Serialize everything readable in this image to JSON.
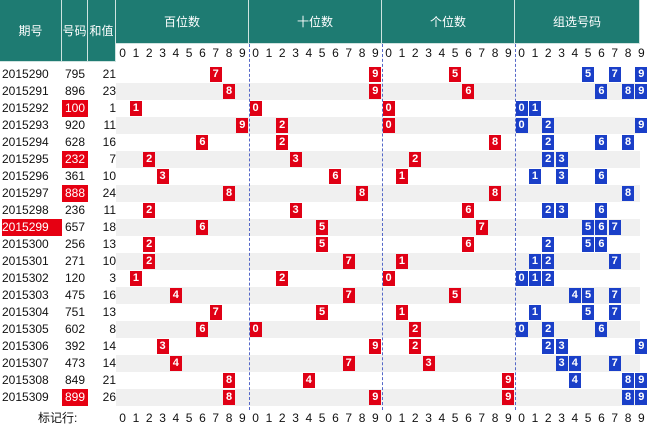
{
  "headers": {
    "issue": "期号",
    "number": "号码",
    "sum": "和值",
    "hundreds": "百位数",
    "tens": "十位数",
    "units": "个位数",
    "group": "组选号码"
  },
  "digits": [
    "0",
    "1",
    "2",
    "3",
    "4",
    "5",
    "6",
    "7",
    "8",
    "9"
  ],
  "footer_label": "标记行:",
  "colors": {
    "header": "#1e7b72",
    "red": "#e00015",
    "blue": "#1a3fc8",
    "stripe": "#f0f0f0"
  },
  "chart_data": {
    "type": "table",
    "rows": [
      {
        "issue": "2015290",
        "number": "795",
        "sum": "21",
        "h": 7,
        "t": 9,
        "u": 5,
        "g": [
          5,
          7,
          9
        ],
        "issue_hl": false,
        "num_hl": false
      },
      {
        "issue": "2015291",
        "number": "896",
        "sum": "23",
        "h": 8,
        "t": 9,
        "u": 6,
        "g": [
          6,
          8,
          9
        ],
        "issue_hl": false,
        "num_hl": false
      },
      {
        "issue": "2015292",
        "number": "100",
        "sum": "1",
        "h": 1,
        "t": 0,
        "u": 0,
        "g": [
          0,
          1
        ],
        "issue_hl": false,
        "num_hl": true
      },
      {
        "issue": "2015293",
        "number": "920",
        "sum": "11",
        "h": 9,
        "t": 2,
        "u": 0,
        "g": [
          0,
          2,
          9
        ],
        "issue_hl": false,
        "num_hl": false
      },
      {
        "issue": "2015294",
        "number": "628",
        "sum": "16",
        "h": 6,
        "t": 2,
        "u": 8,
        "g": [
          2,
          6,
          8
        ],
        "issue_hl": false,
        "num_hl": false
      },
      {
        "issue": "2015295",
        "number": "232",
        "sum": "7",
        "h": 2,
        "t": 3,
        "u": 2,
        "g": [
          2,
          3
        ],
        "issue_hl": false,
        "num_hl": true
      },
      {
        "issue": "2015296",
        "number": "361",
        "sum": "10",
        "h": 3,
        "t": 6,
        "u": 1,
        "g": [
          1,
          3,
          6
        ],
        "issue_hl": false,
        "num_hl": false
      },
      {
        "issue": "2015297",
        "number": "888",
        "sum": "24",
        "h": 8,
        "t": 8,
        "u": 8,
        "g": [
          8
        ],
        "issue_hl": false,
        "num_hl": true
      },
      {
        "issue": "2015298",
        "number": "236",
        "sum": "11",
        "h": 2,
        "t": 3,
        "u": 6,
        "g": [
          2,
          3,
          6
        ],
        "issue_hl": false,
        "num_hl": false
      },
      {
        "issue": "2015299",
        "number": "657",
        "sum": "18",
        "h": 6,
        "t": 5,
        "u": 7,
        "g": [
          5,
          6,
          7
        ],
        "issue_hl": true,
        "num_hl": false
      },
      {
        "issue": "2015300",
        "number": "256",
        "sum": "13",
        "h": 2,
        "t": 5,
        "u": 6,
        "g": [
          2,
          5,
          6
        ],
        "issue_hl": false,
        "num_hl": false
      },
      {
        "issue": "2015301",
        "number": "271",
        "sum": "10",
        "h": 2,
        "t": 7,
        "u": 1,
        "g": [
          1,
          2,
          7
        ],
        "issue_hl": false,
        "num_hl": false
      },
      {
        "issue": "2015302",
        "number": "120",
        "sum": "3",
        "h": 1,
        "t": 2,
        "u": 0,
        "g": [
          0,
          1,
          2
        ],
        "issue_hl": false,
        "num_hl": false
      },
      {
        "issue": "2015303",
        "number": "475",
        "sum": "16",
        "h": 4,
        "t": 7,
        "u": 5,
        "g": [
          4,
          5,
          7
        ],
        "issue_hl": false,
        "num_hl": false
      },
      {
        "issue": "2015304",
        "number": "751",
        "sum": "13",
        "h": 7,
        "t": 5,
        "u": 1,
        "g": [
          1,
          5,
          7
        ],
        "issue_hl": false,
        "num_hl": false
      },
      {
        "issue": "2015305",
        "number": "602",
        "sum": "8",
        "h": 6,
        "t": 0,
        "u": 2,
        "g": [
          0,
          2,
          6
        ],
        "issue_hl": false,
        "num_hl": false
      },
      {
        "issue": "2015306",
        "number": "392",
        "sum": "14",
        "h": 3,
        "t": 9,
        "u": 2,
        "g": [
          2,
          3,
          9
        ],
        "issue_hl": false,
        "num_hl": false
      },
      {
        "issue": "2015307",
        "number": "473",
        "sum": "14",
        "h": 4,
        "t": 7,
        "u": 3,
        "g": [
          3,
          4,
          7
        ],
        "issue_hl": false,
        "num_hl": false
      },
      {
        "issue": "2015308",
        "number": "849",
        "sum": "21",
        "h": 8,
        "t": 4,
        "u": 9,
        "g": [
          4,
          8,
          9
        ],
        "issue_hl": false,
        "num_hl": false
      },
      {
        "issue": "2015309",
        "number": "899",
        "sum": "26",
        "h": 8,
        "t": 9,
        "u": 9,
        "g": [
          8,
          9
        ],
        "issue_hl": false,
        "num_hl": true
      }
    ]
  }
}
